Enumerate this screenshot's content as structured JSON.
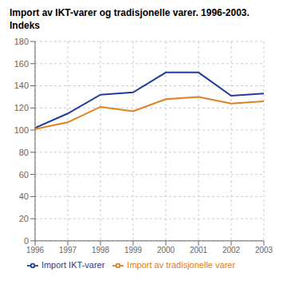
{
  "chart_data": {
    "type": "line",
    "title": "Import av IKT-varer og tradisjonelle varer. 1996-2003.",
    "subtitle": "Indeks",
    "x": [
      1996,
      1997,
      1998,
      1999,
      2000,
      2001,
      2002,
      2003
    ],
    "xlim": [
      1996,
      2003
    ],
    "xticks": [
      1996,
      1997,
      1998,
      1999,
      2000,
      2001,
      2002,
      2003
    ],
    "series": [
      {
        "name": "Import IKT-varer",
        "color": "#1f3d99",
        "values": [
          102,
          115,
          132,
          134,
          152,
          152,
          131,
          133
        ]
      },
      {
        "name": "Import av tradisjonelle varer",
        "color": "#e08020",
        "values": [
          101,
          107,
          121,
          117,
          128,
          130,
          124,
          126
        ]
      }
    ],
    "ylim": [
      0,
      180
    ],
    "yticks": [
      0,
      20,
      40,
      60,
      80,
      100,
      120,
      140,
      160,
      180
    ],
    "grid": true,
    "legend": "bottom"
  }
}
